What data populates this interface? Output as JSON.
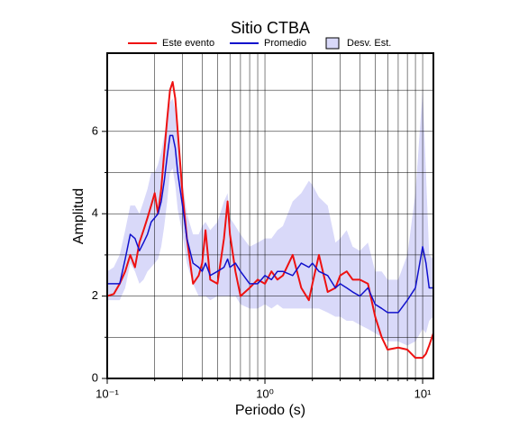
{
  "chart_data": {
    "type": "line",
    "title": "Sitio CTBA",
    "x_label": "Periodo (s)",
    "y_label": "Amplitud",
    "xlog": true,
    "grid": true,
    "legend": "top",
    "xlim": [
      0.1,
      11.7
    ],
    "ylim": [
      0,
      7.9
    ],
    "xticks": [
      {
        "value": 0.1,
        "label": "10⁻¹"
      },
      {
        "value": 1,
        "label": "10⁰"
      },
      {
        "value": 10,
        "label": "10¹"
      }
    ],
    "xminorticks": [
      0.2,
      0.3,
      0.4,
      0.5,
      0.6,
      0.7,
      0.8,
      0.9,
      2,
      3,
      4,
      5,
      6,
      7,
      8,
      9
    ],
    "yticks": [
      0,
      2,
      4,
      6
    ],
    "yminorticks": [
      1,
      3,
      5,
      7
    ],
    "x": [
      0.1,
      0.11,
      0.12,
      0.13,
      0.14,
      0.15,
      0.16,
      0.17,
      0.18,
      0.19,
      0.2,
      0.21,
      0.22,
      0.23,
      0.24,
      0.25,
      0.26,
      0.27,
      0.28,
      0.3,
      0.32,
      0.35,
      0.38,
      0.4,
      0.42,
      0.45,
      0.5,
      0.55,
      0.58,
      0.6,
      0.65,
      0.7,
      0.8,
      0.9,
      1.0,
      1.1,
      1.2,
      1.3,
      1.5,
      1.7,
      1.9,
      2.0,
      2.2,
      2.5,
      2.8,
      3.0,
      3.3,
      3.6,
      4.0,
      4.5,
      5.0,
      5.5,
      6,
      7,
      8,
      9,
      10,
      10.5,
      11,
      11.7
    ],
    "band": {
      "name": "Desv. Est.",
      "color": "#d9d9f9",
      "upper": [
        2.6,
        2.7,
        3.0,
        3.6,
        4.2,
        4.2,
        4.0,
        4.3,
        4.6,
        5.0,
        5.0,
        5.2,
        5.5,
        5.9,
        6.3,
        6.7,
        6.8,
        6.5,
        5.9,
        4.8,
        4.0,
        3.5,
        3.5,
        3.7,
        3.8,
        3.6,
        3.8,
        4.3,
        4.5,
        3.9,
        3.7,
        3.5,
        3.2,
        3.3,
        3.4,
        3.4,
        3.6,
        3.7,
        4.3,
        4.5,
        4.8,
        4.7,
        4.4,
        4.2,
        3.3,
        3.4,
        3.6,
        3.2,
        3.1,
        3.3,
        2.6,
        2.6,
        2.4,
        2.4,
        3.0,
        4.5,
        7.0,
        5.0,
        3.0,
        2.9
      ],
      "lower": [
        1.9,
        1.9,
        1.9,
        2.2,
        2.8,
        2.6,
        2.3,
        2.4,
        2.6,
        2.7,
        2.8,
        2.9,
        3.2,
        3.7,
        4.3,
        5.0,
        5.1,
        4.7,
        4.1,
        3.5,
        2.8,
        2.3,
        2.0,
        2.0,
        2.0,
        1.9,
        2.0,
        2.0,
        2.0,
        2.0,
        2.0,
        1.8,
        1.7,
        1.7,
        1.8,
        1.7,
        1.8,
        1.7,
        1.7,
        1.7,
        1.7,
        1.7,
        1.7,
        1.6,
        1.5,
        1.5,
        1.4,
        1.4,
        1.3,
        1.2,
        1.1,
        1.0,
        0.9,
        0.9,
        0.8,
        0.9,
        1.2,
        1.1,
        1.4,
        1.5
      ]
    },
    "series": [
      {
        "name": "Este evento",
        "color": "#ee1111",
        "values": [
          2.0,
          2.05,
          2.3,
          2.6,
          3.0,
          2.7,
          3.3,
          3.6,
          3.9,
          4.2,
          4.5,
          4.0,
          4.6,
          5.5,
          6.3,
          7.0,
          7.2,
          6.8,
          6.0,
          4.5,
          3.4,
          2.3,
          2.5,
          2.8,
          3.6,
          2.4,
          2.3,
          3.4,
          4.3,
          3.5,
          2.6,
          2.0,
          2.2,
          2.4,
          2.3,
          2.6,
          2.4,
          2.5,
          3.0,
          2.2,
          1.9,
          2.3,
          3.0,
          2.1,
          2.2,
          2.5,
          2.6,
          2.4,
          2.4,
          2.3,
          1.5,
          1.0,
          0.7,
          0.75,
          0.7,
          0.5,
          0.5,
          0.6,
          0.8,
          1.1
        ]
      },
      {
        "name": "Promedio",
        "color": "#1111cc",
        "values": [
          2.3,
          2.3,
          2.3,
          2.9,
          3.5,
          3.4,
          3.1,
          3.3,
          3.5,
          3.8,
          3.9,
          4.0,
          4.3,
          4.8,
          5.4,
          5.9,
          5.9,
          5.6,
          5.0,
          4.2,
          3.4,
          2.8,
          2.7,
          2.6,
          2.8,
          2.5,
          2.6,
          2.7,
          2.9,
          2.7,
          2.8,
          2.6,
          2.3,
          2.3,
          2.5,
          2.4,
          2.6,
          2.6,
          2.5,
          2.8,
          2.7,
          2.8,
          2.6,
          2.5,
          2.2,
          2.3,
          2.2,
          2.1,
          2.0,
          2.2,
          1.8,
          1.7,
          1.6,
          1.6,
          1.9,
          2.2,
          3.2,
          2.8,
          2.2,
          2.2
        ]
      }
    ]
  }
}
